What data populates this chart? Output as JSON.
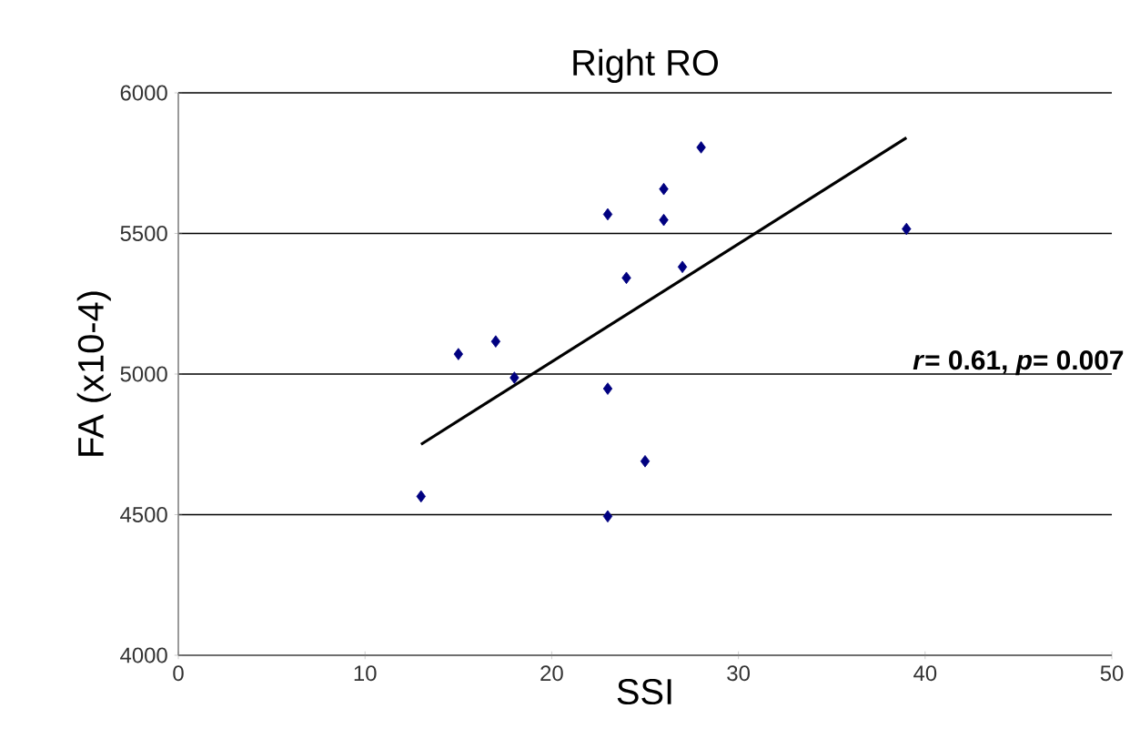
{
  "chart_data": {
    "type": "scatter",
    "title": "Right RO",
    "xlabel": "SSI",
    "ylabel": "FA (x10-4)",
    "xlim": [
      0,
      50
    ],
    "xticks": [
      0,
      10,
      20,
      30,
      40,
      50
    ],
    "ylim": [
      4000,
      6000
    ],
    "yticks": [
      4000,
      4500,
      5000,
      5500,
      6000
    ],
    "grid": "y",
    "marker": "diamond",
    "series": [
      {
        "color": "#000080",
        "x": [
          13,
          15,
          17,
          18,
          23,
          23,
          23,
          24,
          25,
          26,
          26,
          27,
          28,
          39
        ],
        "values": [
          4565,
          5071,
          5116,
          4987,
          5568,
          4948,
          4494,
          5342,
          4690,
          5658,
          5548,
          5381,
          5806,
          5516
        ]
      },
      {
        "type": "line",
        "color": "#000000",
        "marker": "none",
        "x": [
          13,
          39
        ],
        "values": [
          4750,
          5840
        ]
      }
    ],
    "annotations": [
      "*r*= 0.61, *p*= 0.007"
    ]
  }
}
